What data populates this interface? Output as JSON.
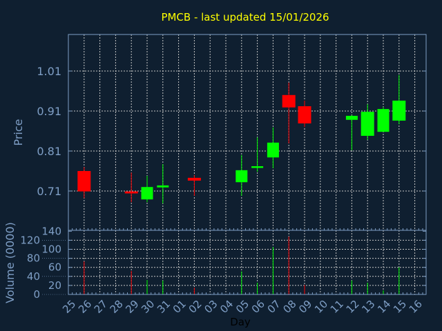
{
  "chart_data": {
    "type": "candlestick",
    "title": "PMCB - last updated 15/01/2026",
    "xlabel": "Day",
    "ylabel": "Price",
    "volume_label": "Volume (0000)",
    "x_tick_labels": [
      "25",
      "26",
      "27",
      "28",
      "29",
      "30",
      "31",
      "01",
      "02",
      "03",
      "04",
      "05",
      "06",
      "07",
      "08",
      "09",
      "10",
      "11",
      "12",
      "13",
      "14",
      "15",
      "16"
    ],
    "y_ticks": [
      0.71,
      0.81,
      0.91,
      1.01
    ],
    "y_tick_labels": [
      "0.71",
      "0.81",
      "0.91",
      "1.01"
    ],
    "ylim": [
      0.58,
      1.08
    ],
    "volume_ticks": [
      "0",
      "20",
      "40",
      "60",
      "80",
      "100",
      "120",
      "140"
    ],
    "volume_ylim": [
      0,
      140
    ],
    "grid": true,
    "colors": {
      "up": "#00ff00",
      "down": "#ff0000",
      "background": "#0f1f30",
      "title": "#ffff00",
      "axis": "#7f9fc6",
      "grid": "#c8c8c8"
    },
    "candles": [
      {
        "day": "26",
        "open": 0.76,
        "high": 0.77,
        "low": 0.692,
        "close": 0.709,
        "volume": 73
      },
      {
        "day": "29",
        "open": 0.709,
        "high": 0.756,
        "low": 0.682,
        "close": 0.704,
        "volume": 52
      },
      {
        "day": "30",
        "open": 0.689,
        "high": 0.748,
        "low": 0.682,
        "close": 0.72,
        "volume": 32
      },
      {
        "day": "31",
        "open": 0.719,
        "high": 0.777,
        "low": 0.679,
        "close": 0.724,
        "volume": 31
      },
      {
        "day": "02",
        "open": 0.743,
        "high": 0.75,
        "low": 0.698,
        "close": 0.736,
        "volume": 15
      },
      {
        "day": "05",
        "open": 0.732,
        "high": 0.8,
        "low": 0.698,
        "close": 0.762,
        "volume": 51
      },
      {
        "day": "06",
        "open": 0.769,
        "high": 0.844,
        "low": 0.758,
        "close": 0.772,
        "volume": 26
      },
      {
        "day": "07",
        "open": 0.794,
        "high": 0.869,
        "low": 0.767,
        "close": 0.831,
        "volume": 105
      },
      {
        "day": "08",
        "open": 0.95,
        "high": 0.981,
        "low": 0.829,
        "close": 0.919,
        "volume": 128
      },
      {
        "day": "09",
        "open": 0.922,
        "high": 0.936,
        "low": 0.87,
        "close": 0.879,
        "volume": 21
      },
      {
        "day": "12",
        "open": 0.888,
        "high": 0.9,
        "low": 0.812,
        "close": 0.898,
        "volume": 31
      },
      {
        "day": "13",
        "open": 0.848,
        "high": 0.927,
        "low": 0.838,
        "close": 0.908,
        "volume": 26
      },
      {
        "day": "14",
        "open": 0.858,
        "high": 0.92,
        "low": 0.858,
        "close": 0.915,
        "volume": 9
      },
      {
        "day": "15",
        "open": 0.886,
        "high": 1.0,
        "low": 0.877,
        "close": 0.936,
        "volume": 60
      }
    ]
  }
}
